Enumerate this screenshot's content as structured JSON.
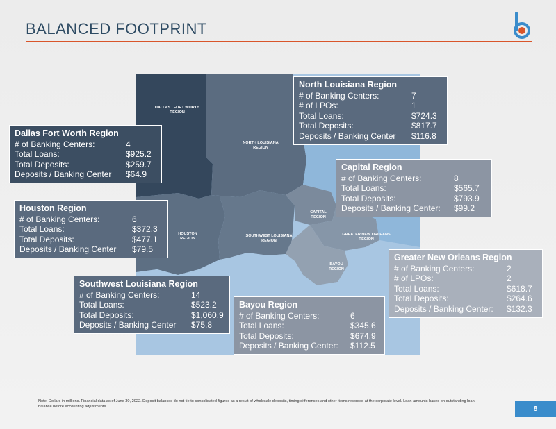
{
  "title": "BALANCED FOOTPRINT",
  "colors": {
    "accent": "#d9552a",
    "brand_blue": "#3a8ccb",
    "water": "#8fb7da"
  },
  "map_labels": [
    {
      "id": "dfw",
      "text": "DALLAS / FORT WORTH\nREGION"
    },
    {
      "id": "nla",
      "text": "NORTH LOUISIANA\nREGION"
    },
    {
      "id": "hou",
      "text": "HOUSTON\nREGION"
    },
    {
      "id": "swla",
      "text": "SOUTHWEST LOUISIANA\nREGION"
    },
    {
      "id": "cap",
      "text": "CAPITAL\nREGION"
    },
    {
      "id": "gno",
      "text": "GREATER NEW ORLEANS\nREGION"
    },
    {
      "id": "bay",
      "text": "BAYOU\nREGION"
    }
  ],
  "regions": {
    "north_louisiana": {
      "title": "North Louisiana Region",
      "rows": [
        {
          "label": "# of Banking Centers:",
          "value": "7"
        },
        {
          "label": "# of LPOs:",
          "value": "1"
        },
        {
          "label": "Total Loans:",
          "value": "$724.3"
        },
        {
          "label": "Total Deposits:",
          "value": "$817.7"
        },
        {
          "label": "Deposits / Banking Center",
          "value": "$116.8"
        }
      ]
    },
    "dallas": {
      "title": "Dallas Fort Worth Region",
      "rows": [
        {
          "label": "# of Banking Centers:",
          "value": "4"
        },
        {
          "label": "Total Loans:",
          "value": "$925.2"
        },
        {
          "label": "Total Deposits:",
          "value": "$259.7"
        },
        {
          "label": "Deposits / Banking Center",
          "value": "$64.9"
        }
      ]
    },
    "capital": {
      "title": "Capital Region",
      "rows": [
        {
          "label": "# of Banking Centers:",
          "value": "8"
        },
        {
          "label": "Total Loans:",
          "value": "$565.7"
        },
        {
          "label": "Total Deposits:",
          "value": "$793.9"
        },
        {
          "label": "Deposits / Banking Center:",
          "value": "$99.2"
        }
      ]
    },
    "houston": {
      "title": "Houston Region",
      "rows": [
        {
          "label": "# of Banking Centers:",
          "value": "6"
        },
        {
          "label": "Total Loans:",
          "value": "$372.3"
        },
        {
          "label": "Total Deposits:",
          "value": "$477.1"
        },
        {
          "label": "Deposits / Banking Center",
          "value": "$79.5"
        }
      ]
    },
    "greater_new_orleans": {
      "title": "Greater New Orleans Region",
      "rows": [
        {
          "label": "# of Banking Centers:",
          "value": "2"
        },
        {
          "label": "# of LPOs:",
          "value": "2"
        },
        {
          "label": "Total Loans:",
          "value": "$618.7"
        },
        {
          "label": "Total Deposits:",
          "value": "$264.6"
        },
        {
          "label": "Deposits / Banking Center:",
          "value": "$132.3"
        }
      ]
    },
    "southwest_louisiana": {
      "title": "Southwest Louisiana Region",
      "rows": [
        {
          "label": "# of Banking Centers:",
          "value": "14"
        },
        {
          "label": "Total Loans:",
          "value": "$523.2"
        },
        {
          "label": "Total Deposits:",
          "value": "$1,060.9"
        },
        {
          "label": "Deposits / Banking Center",
          "value": "$75.8"
        }
      ]
    },
    "bayou": {
      "title": "Bayou Region",
      "rows": [
        {
          "label": "# of Banking Centers:",
          "value": "6"
        },
        {
          "label": "Total Loans:",
          "value": "$345.6"
        },
        {
          "label": "Total Deposits:",
          "value": "$674.9"
        },
        {
          "label": "Deposits / Banking Center:",
          "value": "$112.5"
        }
      ]
    }
  },
  "footnote": "Note: Dollars in millions. Financial data as of June 30, 2022. Deposit balances do not tie to consolidated figures as a result of wholesale deposits, timing differences and other items recorded at the corporate level. Loan amounts based on outstanding loan balance before accounting adjustments.",
  "page_number": "8"
}
